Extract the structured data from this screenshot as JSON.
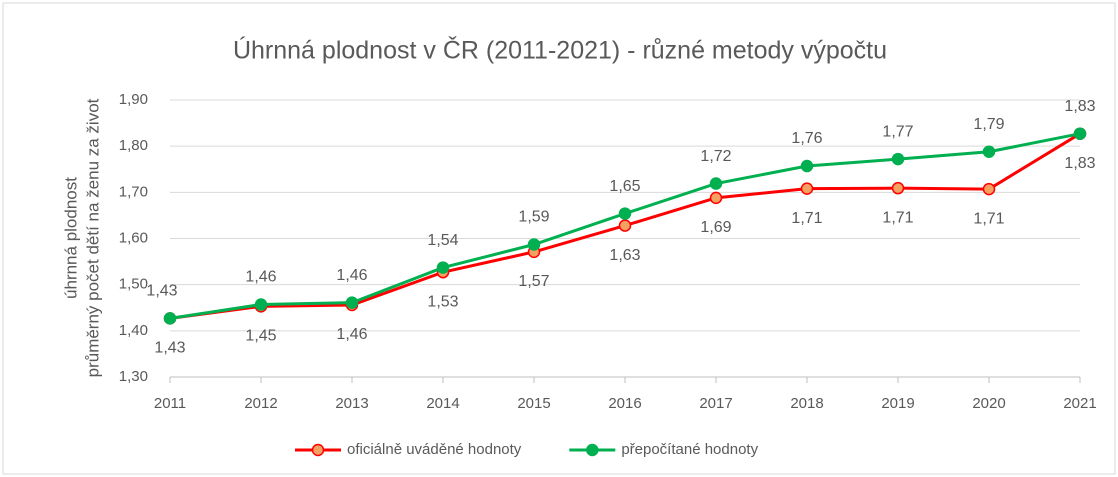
{
  "chart_data": {
    "type": "line",
    "title": "Úhrnná plodnost v ČR (2011-2021) - různé metody výpočtu",
    "y_label": [
      "úhrnná plodnost",
      "průměrný počet dětí na ženu za život"
    ],
    "categories": [
      "2011",
      "2012",
      "2013",
      "2014",
      "2015",
      "2016",
      "2017",
      "2018",
      "2019",
      "2020",
      "2021"
    ],
    "series": [
      {
        "name": "oficiálně uváděné hodnoty",
        "color": "#ff0000",
        "marker_color": "#f4a060",
        "values": [
          1.427,
          1.453,
          1.456,
          1.527,
          1.571,
          1.628,
          1.688,
          1.708,
          1.709,
          1.707,
          1.827
        ],
        "value_labels": [
          "1,43",
          "1,45",
          "1,46",
          "1,53",
          "1,57",
          "1,63",
          "1,69",
          "1,71",
          "1,71",
          "1,71",
          "1,83"
        ]
      },
      {
        "name": "přepočítané hodnoty",
        "color": "#00b050",
        "marker_color": "#00b050",
        "values": [
          1.427,
          1.457,
          1.461,
          1.537,
          1.587,
          1.654,
          1.719,
          1.757,
          1.772,
          1.788,
          1.827
        ],
        "value_labels": [
          "1,43",
          "1,46",
          "1,46",
          "1,54",
          "1,59",
          "1,65",
          "1,72",
          "1,76",
          "1,77",
          "1,79",
          "1,83"
        ]
      }
    ],
    "ylim": [
      1.3,
      1.9
    ],
    "yticks": [
      {
        "value": 1.3,
        "label": "1,30"
      },
      {
        "value": 1.4,
        "label": "1,40"
      },
      {
        "value": 1.5,
        "label": "1,50"
      },
      {
        "value": 1.6,
        "label": "1,60"
      },
      {
        "value": 1.7,
        "label": "1,70"
      },
      {
        "value": 1.8,
        "label": "1,80"
      },
      {
        "value": 1.9,
        "label": "1,90"
      }
    ],
    "grid": true,
    "legend": "bottom"
  }
}
